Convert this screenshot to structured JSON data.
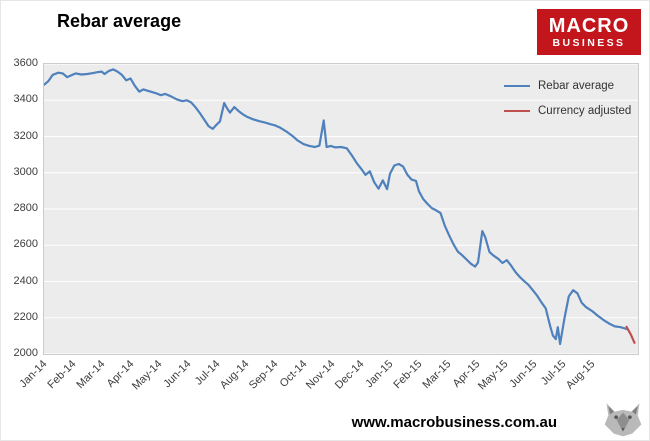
{
  "header": {
    "title": "Rebar average"
  },
  "logo": {
    "line1": "MACRO",
    "line2": "BUSINESS",
    "bg_color": "#c3161c"
  },
  "footer": {
    "url": "www.macrobusiness.com.au"
  },
  "chart_data": {
    "type": "line",
    "title": "Rebar average",
    "xlabel": "",
    "ylabel": "",
    "ylim": [
      2000,
      3600
    ],
    "ytick_step": 200,
    "ytick_labels": [
      "2000",
      "2200",
      "2400",
      "2600",
      "2800",
      "3000",
      "3200",
      "3400",
      "3600"
    ],
    "x_tick_labels": [
      "Jan-14",
      "Feb-14",
      "Mar-14",
      "Apr-14",
      "May-14",
      "Jun-14",
      "Jul-14",
      "Aug-14",
      "Sep-14",
      "Oct-14",
      "Nov-14",
      "Dec-14",
      "Jan-15",
      "Feb-15",
      "Mar-15",
      "Apr-15",
      "May-15",
      "Jun-15",
      "Jul-15",
      "Aug-15"
    ],
    "x_range_months": [
      0,
      20.6
    ],
    "grid": true,
    "gridline_color": "#ffffff",
    "plot_bg": "#ececec",
    "legend_position": "top-right-inside",
    "legend": [
      {
        "label": "Rebar average",
        "color": "#4F81BD"
      },
      {
        "label": "Currency adjusted",
        "color": "#C0504D"
      }
    ],
    "series": [
      {
        "name": "Rebar average",
        "color": "#4F81BD",
        "points": [
          [
            0,
            3485
          ],
          [
            0.15,
            3505
          ],
          [
            0.3,
            3540
          ],
          [
            0.5,
            3552
          ],
          [
            0.65,
            3548
          ],
          [
            0.8,
            3528
          ],
          [
            0.95,
            3538
          ],
          [
            1.1,
            3548
          ],
          [
            1.3,
            3542
          ],
          [
            1.5,
            3545
          ],
          [
            1.7,
            3550
          ],
          [
            1.85,
            3555
          ],
          [
            2,
            3558
          ],
          [
            2.1,
            3545
          ],
          [
            2.25,
            3562
          ],
          [
            2.4,
            3570
          ],
          [
            2.55,
            3558
          ],
          [
            2.7,
            3540
          ],
          [
            2.85,
            3510
          ],
          [
            3,
            3520
          ],
          [
            3.15,
            3480
          ],
          [
            3.3,
            3448
          ],
          [
            3.45,
            3460
          ],
          [
            3.6,
            3452
          ],
          [
            3.75,
            3445
          ],
          [
            3.9,
            3438
          ],
          [
            4.05,
            3428
          ],
          [
            4.2,
            3435
          ],
          [
            4.4,
            3422
          ],
          [
            4.6,
            3405
          ],
          [
            4.8,
            3395
          ],
          [
            4.95,
            3400
          ],
          [
            5.1,
            3388
          ],
          [
            5.25,
            3362
          ],
          [
            5.4,
            3330
          ],
          [
            5.55,
            3295
          ],
          [
            5.7,
            3258
          ],
          [
            5.85,
            3242
          ],
          [
            6,
            3268
          ],
          [
            6.1,
            3282
          ],
          [
            6.25,
            3385
          ],
          [
            6.35,
            3355
          ],
          [
            6.45,
            3332
          ],
          [
            6.6,
            3362
          ],
          [
            6.75,
            3340
          ],
          [
            6.9,
            3322
          ],
          [
            7.05,
            3308
          ],
          [
            7.25,
            3295
          ],
          [
            7.45,
            3285
          ],
          [
            7.65,
            3278
          ],
          [
            7.85,
            3268
          ],
          [
            8,
            3262
          ],
          [
            8.2,
            3248
          ],
          [
            8.4,
            3228
          ],
          [
            8.6,
            3205
          ],
          [
            8.8,
            3178
          ],
          [
            9,
            3158
          ],
          [
            9.2,
            3148
          ],
          [
            9.4,
            3142
          ],
          [
            9.55,
            3150
          ],
          [
            9.7,
            3288
          ],
          [
            9.8,
            3142
          ],
          [
            9.95,
            3148
          ],
          [
            10.1,
            3140
          ],
          [
            10.3,
            3142
          ],
          [
            10.5,
            3135
          ],
          [
            10.7,
            3090
          ],
          [
            10.85,
            3052
          ],
          [
            11,
            3022
          ],
          [
            11.15,
            2988
          ],
          [
            11.3,
            3008
          ],
          [
            11.45,
            2948
          ],
          [
            11.6,
            2912
          ],
          [
            11.75,
            2958
          ],
          [
            11.9,
            2910
          ],
          [
            12,
            2995
          ],
          [
            12.15,
            3040
          ],
          [
            12.3,
            3048
          ],
          [
            12.45,
            3035
          ],
          [
            12.6,
            2990
          ],
          [
            12.75,
            2962
          ],
          [
            12.9,
            2955
          ],
          [
            13,
            2898
          ],
          [
            13.15,
            2855
          ],
          [
            13.3,
            2828
          ],
          [
            13.45,
            2805
          ],
          [
            13.6,
            2792
          ],
          [
            13.75,
            2778
          ],
          [
            13.9,
            2708
          ],
          [
            14.05,
            2655
          ],
          [
            14.2,
            2605
          ],
          [
            14.35,
            2565
          ],
          [
            14.5,
            2545
          ],
          [
            14.65,
            2522
          ],
          [
            14.8,
            2498
          ],
          [
            14.95,
            2482
          ],
          [
            15.05,
            2505
          ],
          [
            15.2,
            2678
          ],
          [
            15.3,
            2645
          ],
          [
            15.45,
            2562
          ],
          [
            15.6,
            2542
          ],
          [
            15.75,
            2525
          ],
          [
            15.9,
            2502
          ],
          [
            16.05,
            2518
          ],
          [
            16.2,
            2488
          ],
          [
            16.35,
            2452
          ],
          [
            16.5,
            2425
          ],
          [
            16.65,
            2402
          ],
          [
            16.8,
            2382
          ],
          [
            16.95,
            2352
          ],
          [
            17.1,
            2322
          ],
          [
            17.25,
            2285
          ],
          [
            17.4,
            2252
          ],
          [
            17.55,
            2155
          ],
          [
            17.65,
            2102
          ],
          [
            17.75,
            2082
          ],
          [
            17.82,
            2148
          ],
          [
            17.9,
            2055
          ],
          [
            18.05,
            2198
          ],
          [
            18.2,
            2318
          ],
          [
            18.35,
            2352
          ],
          [
            18.5,
            2335
          ],
          [
            18.65,
            2282
          ],
          [
            18.8,
            2258
          ],
          [
            19,
            2238
          ],
          [
            19.2,
            2212
          ],
          [
            19.4,
            2188
          ],
          [
            19.6,
            2168
          ],
          [
            19.8,
            2152
          ],
          [
            20,
            2148
          ],
          [
            20.2,
            2138
          ]
        ]
      },
      {
        "name": "Currency adjusted",
        "color": "#C0504D",
        "points": [
          [
            20.2,
            2150
          ],
          [
            20.35,
            2108
          ],
          [
            20.48,
            2062
          ]
        ]
      }
    ]
  }
}
